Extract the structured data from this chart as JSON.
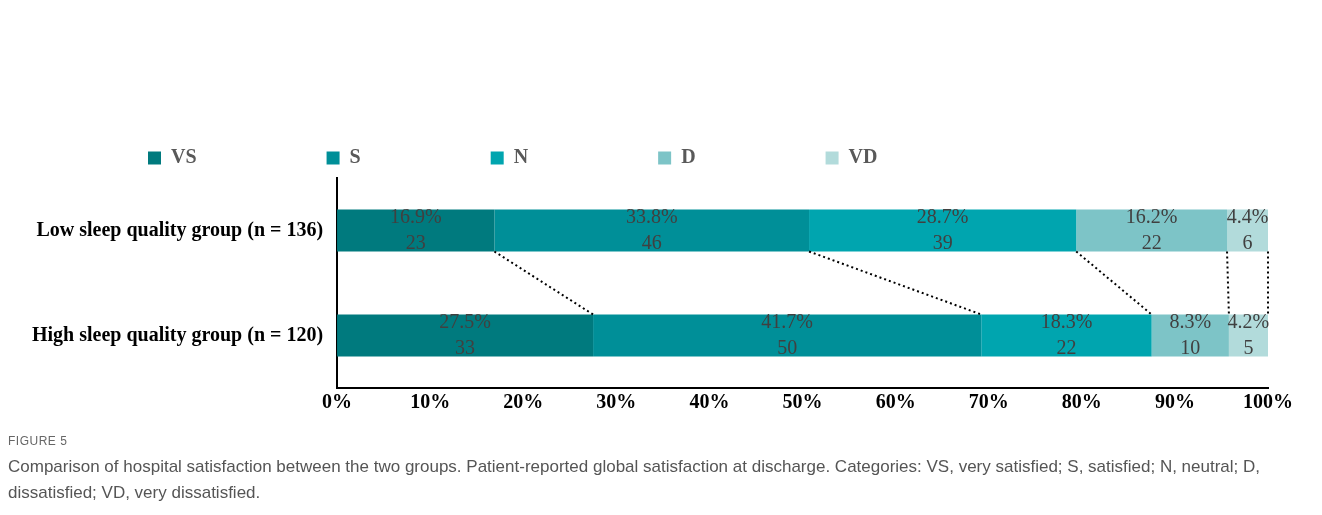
{
  "chart_data": {
    "type": "bar",
    "orientation": "horizontal",
    "stacked": true,
    "categories": [
      "Low sleep quality group (n = 136)",
      "High sleep quality group (n = 120)"
    ],
    "series": [
      {
        "name": "VS",
        "color": "#007a7e",
        "values": [
          16.9,
          27.5
        ],
        "value_labels": [
          "16.9%\n23",
          "27.5%\n33"
        ]
      },
      {
        "name": "S",
        "color": "#008f98",
        "values": [
          33.8,
          41.7
        ],
        "value_labels": [
          "33.8%\n46",
          "41.7%\n50"
        ]
      },
      {
        "name": "N",
        "color": "#00a5af",
        "values": [
          28.7,
          18.3
        ],
        "value_labels": [
          "28.7%\n39",
          "18.3%\n22"
        ]
      },
      {
        "name": "D",
        "color": "#7dc4c7",
        "values": [
          16.2,
          8.3
        ],
        "value_labels": [
          "16.2%\n22",
          "8.3%\n10"
        ]
      },
      {
        "name": "VD",
        "color": "#b2dbdb",
        "values": [
          4.4,
          4.2
        ],
        "value_labels": [
          "4.4%\n6",
          "4.2%\n5"
        ]
      }
    ],
    "xlim": [
      0,
      100
    ],
    "xticks": [
      {
        "value": 0,
        "label": "0%"
      },
      {
        "value": 10,
        "label": "10%"
      },
      {
        "value": 20,
        "label": "20%"
      },
      {
        "value": 30,
        "label": "30%"
      },
      {
        "value": 40,
        "label": "40%"
      },
      {
        "value": 50,
        "label": "50%"
      },
      {
        "value": 60,
        "label": "60%"
      },
      {
        "value": 70,
        "label": "70%"
      },
      {
        "value": 80,
        "label": "80%"
      },
      {
        "value": 90,
        "label": "90%"
      },
      {
        "value": 100,
        "label": "100%"
      }
    ],
    "grid": false,
    "legend": "top",
    "annotations": [
      "FIGURE 5",
      "Comparison of hospital satisfaction between the two groups. Patient-reported global satisfaction at discharge. Categories: VS, very satisfied; S, satisfied; N, neutral; D, dissatisfied; VD, very dissatisfied."
    ]
  }
}
